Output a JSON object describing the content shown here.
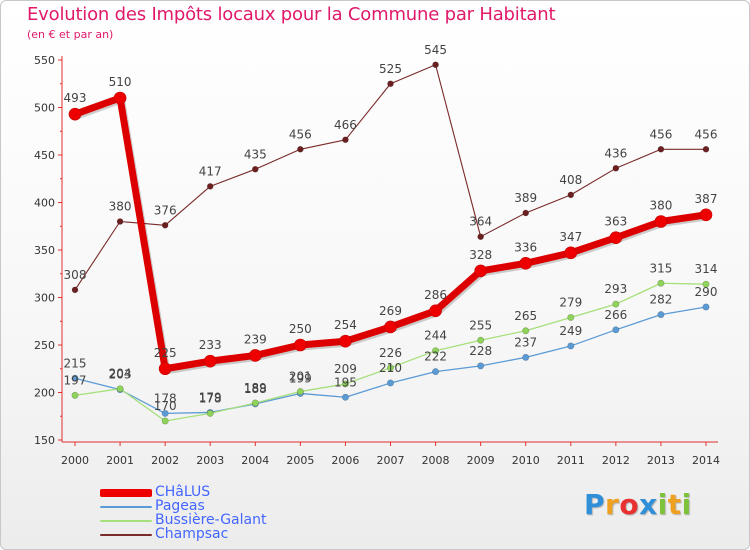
{
  "title": "Evolution des Impôts locaux pour la Commune par Habitant",
  "subtitle": "(en € et par an)",
  "logo": {
    "letters": [
      "P",
      "r",
      "o",
      "x",
      "i",
      "t",
      "i"
    ],
    "colors": [
      "#2f8fd8",
      "#f0a020",
      "#e83030",
      "#2f8fd8",
      "#7cc23a",
      "#f0a020",
      "#7cc23a"
    ]
  },
  "chart_data": {
    "type": "line",
    "x": [
      "2000",
      "2001",
      "2002",
      "2003",
      "2004",
      "2005",
      "2006",
      "2007",
      "2008",
      "2009",
      "2010",
      "2011",
      "2012",
      "2013",
      "2014"
    ],
    "ylim": [
      150,
      550
    ],
    "yticks": [
      150,
      200,
      250,
      300,
      350,
      400,
      450,
      500,
      550
    ],
    "grid": false,
    "legend_placement": "bottom-left",
    "series": [
      {
        "name": "CHâLUS",
        "color": "#ee0000",
        "values": [
          493,
          510,
          225,
          233,
          239,
          250,
          254,
          269,
          286,
          328,
          336,
          347,
          363,
          380,
          387
        ]
      },
      {
        "name": "Pageas",
        "color": "#5b9bd5",
        "values": [
          215,
          203,
          178,
          179,
          188,
          199,
          195,
          210,
          222,
          228,
          237,
          249,
          266,
          282,
          290
        ]
      },
      {
        "name": "Bussière-Galant",
        "color": "#a6e07a",
        "values": [
          197,
          204,
          170,
          178,
          189,
          201,
          209,
          226,
          244,
          255,
          265,
          279,
          293,
          315,
          314
        ]
      },
      {
        "name": "Champsac",
        "color": "#7a2a2a",
        "values": [
          308,
          380,
          376,
          417,
          435,
          456,
          466,
          525,
          545,
          364,
          389,
          408,
          436,
          456,
          456
        ]
      }
    ]
  }
}
